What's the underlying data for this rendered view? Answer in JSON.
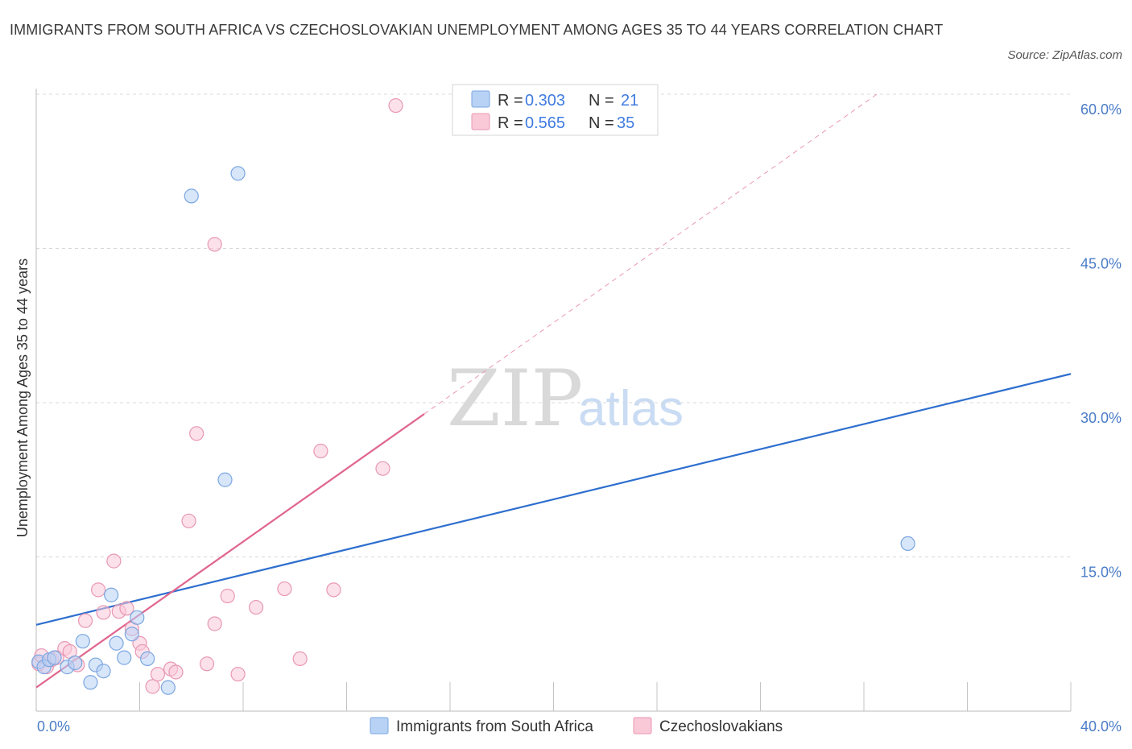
{
  "title": "IMMIGRANTS FROM SOUTH AFRICA VS CZECHOSLOVAKIAN UNEMPLOYMENT AMONG AGES 35 TO 44 YEARS CORRELATION CHART",
  "source": "Source: ZipAtlas.com",
  "watermark": {
    "zip": "ZIP",
    "atlas": "atlas"
  },
  "legend": {
    "r_label": "R =",
    "n_label": "N =",
    "series_a": {
      "r": "0.303",
      "n": "21"
    },
    "series_b": {
      "r": "0.565",
      "n": "35"
    }
  },
  "bottom_legend": {
    "series_a": "Immigrants from South Africa",
    "series_b": "Czechoslovakians"
  },
  "colors": {
    "series_a_fill": "#b8d2f5",
    "series_a_stroke": "#7aa6e0",
    "series_a_line": "#2e6fce",
    "series_b_fill": "#f9c9d8",
    "series_b_stroke": "#e898b2",
    "series_b_line": "#e0668e",
    "grid": "#d8d8d8",
    "tick_label": "#4a7cc7"
  },
  "chart_data": {
    "type": "scatter",
    "title": "IMMIGRANTS FROM SOUTH AFRICA VS CZECHOSLOVAKIAN UNEMPLOYMENT AMONG AGES 35 TO 44 YEARS CORRELATION CHART",
    "xlabel": "",
    "ylabel": "Unemployment Among Ages 35 to 44 years",
    "xlim": [
      0,
      40
    ],
    "ylim": [
      0,
      60
    ],
    "x_tick_labels": [
      "0.0%",
      "40.0%"
    ],
    "y_ticks": [
      15,
      30,
      45,
      60
    ],
    "y_tick_labels": [
      "15.0%",
      "30.0%",
      "45.0%",
      "60.0%"
    ],
    "grid": true,
    "legend_position": "top-center",
    "series": [
      {
        "name": "Immigrants from South Africa",
        "R": 0.303,
        "N": 21,
        "points": [
          [
            0.1,
            4.8
          ],
          [
            0.3,
            4.3
          ],
          [
            0.5,
            5.0
          ],
          [
            0.7,
            5.2
          ],
          [
            1.2,
            4.3
          ],
          [
            1.5,
            4.7
          ],
          [
            1.8,
            6.8
          ],
          [
            2.1,
            2.8
          ],
          [
            2.3,
            4.5
          ],
          [
            2.6,
            3.9
          ],
          [
            2.9,
            11.3
          ],
          [
            3.1,
            6.6
          ],
          [
            3.4,
            5.2
          ],
          [
            3.7,
            7.5
          ],
          [
            3.9,
            9.1
          ],
          [
            4.3,
            5.1
          ],
          [
            5.1,
            2.3
          ],
          [
            6.0,
            50.1
          ],
          [
            7.3,
            22.5
          ],
          [
            7.8,
            52.3
          ],
          [
            33.7,
            16.3
          ]
        ],
        "trend": {
          "x": [
            0,
            40
          ],
          "y": [
            8.4,
            32.8
          ]
        }
      },
      {
        "name": "Czechoslovakians",
        "R": 0.565,
        "N": 35,
        "points": [
          [
            0.1,
            4.6
          ],
          [
            0.4,
            4.3
          ],
          [
            0.6,
            5.0
          ],
          [
            0.8,
            5.2
          ],
          [
            1.1,
            6.1
          ],
          [
            1.3,
            5.8
          ],
          [
            1.6,
            4.5
          ],
          [
            1.9,
            8.8
          ],
          [
            2.4,
            11.8
          ],
          [
            2.6,
            9.6
          ],
          [
            3.0,
            14.6
          ],
          [
            3.2,
            9.7
          ],
          [
            3.5,
            10.0
          ],
          [
            3.7,
            8.0
          ],
          [
            4.0,
            6.6
          ],
          [
            4.1,
            5.8
          ],
          [
            4.5,
            2.4
          ],
          [
            4.7,
            3.6
          ],
          [
            5.2,
            4.1
          ],
          [
            5.4,
            3.8
          ],
          [
            5.9,
            18.5
          ],
          [
            6.2,
            27.0
          ],
          [
            6.6,
            4.6
          ],
          [
            6.9,
            45.4
          ],
          [
            6.9,
            8.5
          ],
          [
            7.4,
            11.2
          ],
          [
            7.8,
            3.6
          ],
          [
            8.5,
            10.1
          ],
          [
            9.6,
            11.9
          ],
          [
            10.2,
            5.1
          ],
          [
            11.0,
            25.3
          ],
          [
            11.5,
            11.8
          ],
          [
            13.4,
            23.6
          ],
          [
            13.9,
            58.9
          ],
          [
            0.2,
            5.4
          ]
        ],
        "trend": {
          "x": [
            0,
            15
          ],
          "y": [
            2.3,
            28.9
          ]
        },
        "trend_extension": {
          "x": [
            15,
            32.5
          ],
          "y": [
            28.9,
            60
          ]
        }
      }
    ]
  }
}
